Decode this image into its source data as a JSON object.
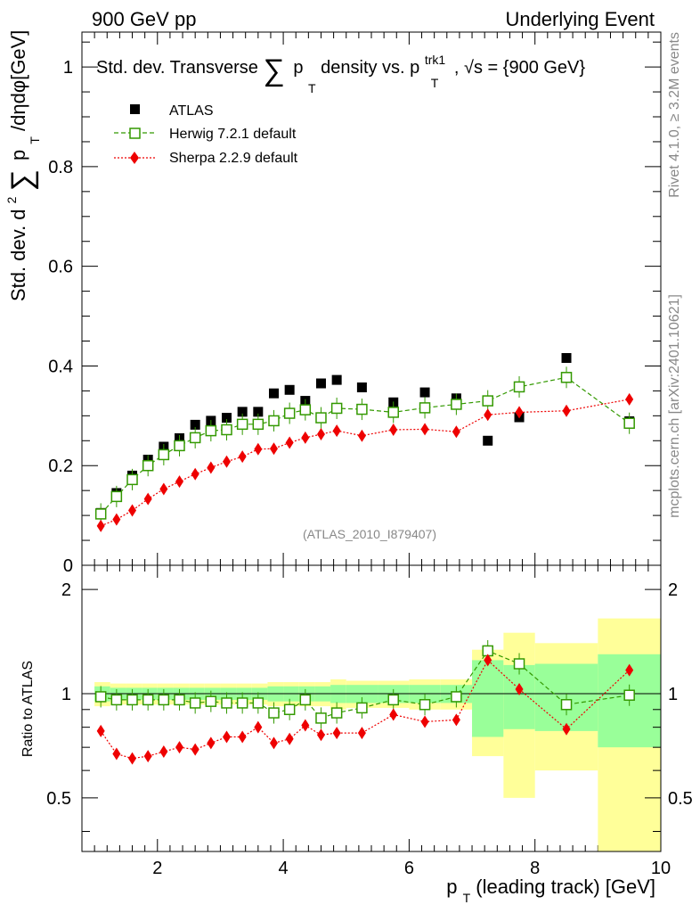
{
  "header": {
    "left_label": "900 GeV pp",
    "right_label": "Underlying Event"
  },
  "side_labels": {
    "rivet": "Rivet 4.1.0, ≥ 3.2M events",
    "mcplots": "mcplots.cern.ch [arXiv:2401.10621]"
  },
  "chart_data": [
    {
      "type": "scatter",
      "panel": "main",
      "title_parts": {
        "prefix": "Std. dev. Transverse",
        "sum": "∑",
        "p": "p",
        "sub_t": "T",
        "mid": " density vs. p",
        "sup_trk": "trk1",
        "sub_t2": "T",
        "suffix": ", √s = {900 GeV}"
      },
      "ylabel_parts": {
        "prefix": "Std. dev. d",
        "sup": "2",
        "sum": "∑",
        "p": "p",
        "sub": "T",
        "suffix": " /dηdφ[GeV]"
      },
      "xlabel": "",
      "xlim": [
        0.8,
        10.0
      ],
      "ylim": [
        0,
        1.07
      ],
      "yticks": [
        0,
        0.2,
        0.4,
        0.6,
        0.8,
        1
      ],
      "ytick_labels": [
        "0",
        "0.2",
        "0.4",
        "0.6",
        "0.8",
        "1"
      ],
      "watermark": "(ATLAS_2010_I879407)",
      "legend_position": "top-left",
      "x": [
        1.1,
        1.35,
        1.6,
        1.85,
        2.1,
        2.35,
        2.6,
        2.85,
        3.1,
        3.35,
        3.6,
        3.85,
        4.1,
        4.35,
        4.6,
        4.85,
        5.25,
        5.75,
        6.25,
        6.75,
        7.25,
        7.75,
        8.5,
        9.5
      ],
      "series": [
        {
          "name": "ATLAS",
          "color": "#000000",
          "marker": "filled-square",
          "values": [
            0.105,
            0.145,
            0.18,
            0.212,
            0.238,
            0.255,
            0.282,
            0.29,
            0.296,
            0.308,
            0.308,
            0.345,
            0.352,
            0.33,
            0.365,
            0.372,
            0.357,
            0.327,
            0.347,
            0.335,
            0.25,
            0.297,
            0.416,
            0.289
          ]
        },
        {
          "name": "Herwig 7.2.1 default",
          "color": "#339900",
          "marker": "open-square",
          "line": "dashed",
          "values": [
            0.103,
            0.138,
            0.172,
            0.2,
            0.222,
            0.24,
            0.256,
            0.27,
            0.272,
            0.283,
            0.283,
            0.29,
            0.305,
            0.312,
            0.296,
            0.315,
            0.313,
            0.307,
            0.316,
            0.323,
            0.33,
            0.358,
            0.377,
            0.285
          ]
        },
        {
          "name": "Sherpa 2.2.9 default",
          "color": "#ee0000",
          "marker": "filled-diamond",
          "line": "dotted",
          "values": [
            0.079,
            0.092,
            0.11,
            0.133,
            0.153,
            0.168,
            0.183,
            0.196,
            0.208,
            0.218,
            0.233,
            0.234,
            0.246,
            0.256,
            0.263,
            0.27,
            0.26,
            0.272,
            0.273,
            0.268,
            0.302,
            0.307,
            0.31,
            0.333
          ]
        }
      ]
    },
    {
      "type": "scatter",
      "panel": "ratio",
      "ylabel": "Ratio to ATLAS",
      "xlabel_parts": {
        "p": "p",
        "sub": "T",
        "suffix": " (leading track) [GeV]"
      },
      "xlim": [
        0.8,
        10.0
      ],
      "ylim": [
        0.35,
        2.35
      ],
      "yscale": "log",
      "xticks": [
        2,
        4,
        6,
        8,
        10
      ],
      "xtick_labels": [
        "2",
        "4",
        "6",
        "8",
        "10"
      ],
      "yticks": [
        0.5,
        1,
        2
      ],
      "ytick_labels": [
        "0.5",
        "1",
        "2"
      ],
      "reference_line": 1.0,
      "bins": [
        [
          1.0,
          1.25
        ],
        [
          1.25,
          1.5
        ],
        [
          1.5,
          1.75
        ],
        [
          1.75,
          2.0
        ],
        [
          2.0,
          2.25
        ],
        [
          2.25,
          2.5
        ],
        [
          2.5,
          2.75
        ],
        [
          2.75,
          3.0
        ],
        [
          3.0,
          3.25
        ],
        [
          3.25,
          3.5
        ],
        [
          3.5,
          3.75
        ],
        [
          3.75,
          4.0
        ],
        [
          4.0,
          4.25
        ],
        [
          4.25,
          4.5
        ],
        [
          4.5,
          4.75
        ],
        [
          4.75,
          5.0
        ],
        [
          5.0,
          5.5
        ],
        [
          5.5,
          6.0
        ],
        [
          6.0,
          6.5
        ],
        [
          6.5,
          7.0
        ],
        [
          7.0,
          7.5
        ],
        [
          7.5,
          8.0
        ],
        [
          8.0,
          9.0
        ],
        [
          9.0,
          10.0
        ]
      ],
      "band_green_halfwidth": [
        0.05,
        0.04,
        0.04,
        0.04,
        0.04,
        0.04,
        0.04,
        0.04,
        0.04,
        0.04,
        0.04,
        0.05,
        0.05,
        0.05,
        0.05,
        0.06,
        0.06,
        0.06,
        0.06,
        0.06,
        0.25,
        0.21,
        0.22,
        0.3
      ],
      "band_yellow_halfwidth": [
        0.08,
        0.07,
        0.07,
        0.07,
        0.07,
        0.07,
        0.07,
        0.07,
        0.07,
        0.07,
        0.07,
        0.08,
        0.08,
        0.08,
        0.08,
        0.1,
        0.09,
        0.09,
        0.1,
        0.1,
        0.34,
        0.5,
        0.4,
        0.65
      ],
      "series": [
        {
          "name": "Herwig 7.2.1 default",
          "color": "#339900",
          "values": [
            0.98,
            0.96,
            0.96,
            0.96,
            0.96,
            0.96,
            0.94,
            0.95,
            0.94,
            0.94,
            0.94,
            0.88,
            0.9,
            0.96,
            0.85,
            0.88,
            0.91,
            0.96,
            0.93,
            0.98,
            1.33,
            1.22,
            0.93,
            0.99
          ]
        },
        {
          "name": "Sherpa 2.2.9 default",
          "color": "#ee0000",
          "values": [
            0.78,
            0.67,
            0.65,
            0.66,
            0.68,
            0.7,
            0.69,
            0.72,
            0.75,
            0.75,
            0.8,
            0.72,
            0.74,
            0.81,
            0.76,
            0.77,
            0.77,
            0.87,
            0.83,
            0.84,
            1.25,
            1.03,
            0.79,
            1.17
          ]
        }
      ]
    }
  ]
}
